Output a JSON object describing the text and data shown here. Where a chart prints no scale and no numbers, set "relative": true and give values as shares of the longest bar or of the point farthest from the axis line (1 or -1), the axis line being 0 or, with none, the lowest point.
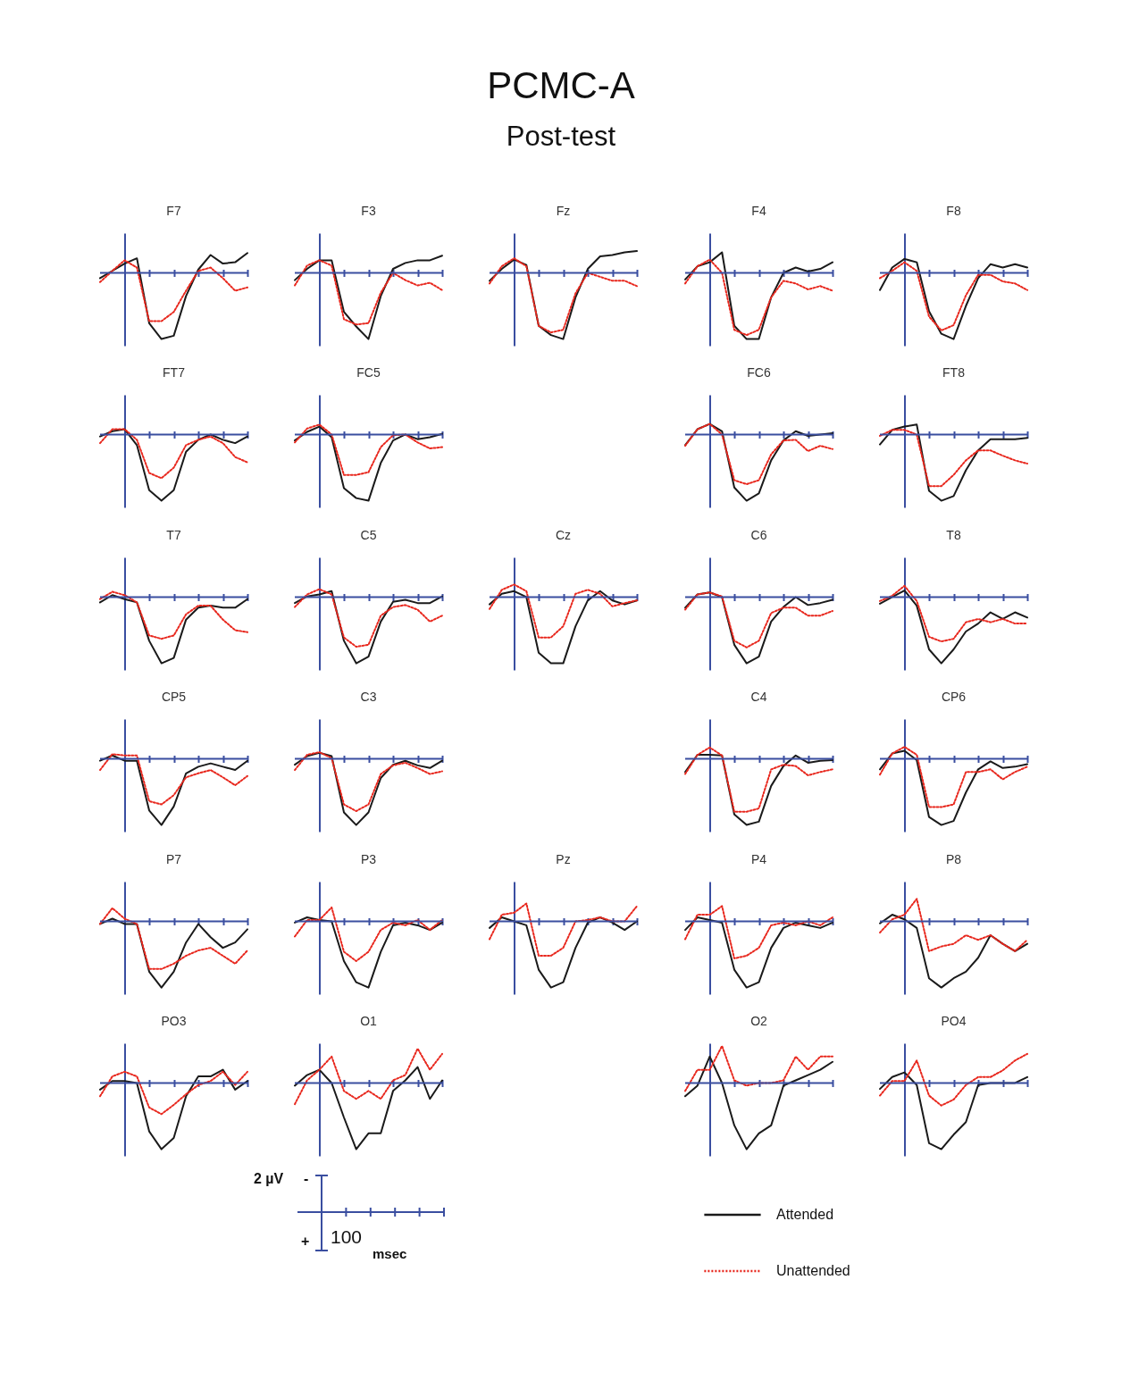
{
  "chart_data": [
    {
      "type": "other",
      "title": "PCMC-A",
      "subtitle": "Post-test"
    },
    {
      "type": "line",
      "title": "F7",
      "relative": true,
      "ref_lines": [
        {
          "axis": "y",
          "value": 0,
          "color": "#3a4ea0"
        }
      ],
      "categories": [
        null,
        null,
        null,
        null,
        null,
        null,
        null,
        null,
        null,
        null,
        null,
        null,
        null
      ],
      "series": [
        {
          "color": "#1a1a1a",
          "line_style": "solid",
          "values": [
            -0.08,
            0.03,
            0.14,
            0.22,
            -0.76,
            -1,
            -0.95,
            -0.35,
            0.05,
            0.27,
            0.14,
            0.16,
            0.3
          ]
        },
        {
          "color": "#e8281e",
          "line_style": "dotted",
          "values": [
            -0.14,
            0.03,
            0.19,
            0.08,
            -0.73,
            -0.73,
            -0.59,
            -0.27,
            0.03,
            0.08,
            -0.08,
            -0.27,
            -0.22
          ]
        }
      ]
    },
    {
      "type": "line",
      "title": "F3",
      "relative": true,
      "ref_lines": [
        {
          "axis": "y",
          "value": 0,
          "color": "#3a4ea0"
        }
      ],
      "categories": [
        null,
        null,
        null,
        null,
        null,
        null,
        null,
        null,
        null,
        null,
        null,
        null,
        null
      ],
      "series": [
        {
          "color": "#1a1a1a",
          "line_style": "solid",
          "values": [
            -0.11,
            0.06,
            0.19,
            0.19,
            -0.59,
            -0.81,
            -1,
            -0.35,
            0.06,
            0.15,
            0.19,
            0.19,
            0.26
          ]
        },
        {
          "color": "#e8281e",
          "line_style": "dotted",
          "values": [
            -0.19,
            0.11,
            0.19,
            0.11,
            -0.7,
            -0.78,
            -0.76,
            -0.3,
            0,
            -0.11,
            -0.19,
            -0.15,
            -0.26
          ]
        }
      ]
    },
    {
      "type": "line",
      "title": "Fz",
      "relative": true,
      "ref_lines": [
        {
          "axis": "y",
          "value": 0,
          "color": "#3a4ea0"
        }
      ],
      "categories": [
        null,
        null,
        null,
        null,
        null,
        null,
        null,
        null,
        null,
        null,
        null,
        null,
        null
      ],
      "series": [
        {
          "color": "#1a1a1a",
          "line_style": "solid",
          "values": [
            -0.12,
            0.06,
            0.2,
            0.12,
            -0.8,
            -0.94,
            -1,
            -0.37,
            0.06,
            0.25,
            0.27,
            0.31,
            0.33
          ]
        },
        {
          "color": "#e8281e",
          "line_style": "dotted",
          "values": [
            -0.16,
            0.1,
            0.22,
            0.1,
            -0.8,
            -0.9,
            -0.86,
            -0.31,
            0,
            -0.06,
            -0.12,
            -0.12,
            -0.2
          ]
        }
      ]
    },
    {
      "type": "line",
      "title": "F4",
      "relative": true,
      "ref_lines": [
        {
          "axis": "y",
          "value": 0,
          "color": "#3a4ea0"
        }
      ],
      "categories": [
        null,
        null,
        null,
        null,
        null,
        null,
        null,
        null,
        null,
        null,
        null,
        null,
        null
      ],
      "series": [
        {
          "color": "#1a1a1a",
          "line_style": "solid",
          "values": [
            -0.1,
            0.1,
            0.16,
            0.31,
            -0.8,
            -1,
            -1,
            -0.37,
            0,
            0.08,
            0.02,
            0.06,
            0.16
          ]
        },
        {
          "color": "#e8281e",
          "line_style": "dotted",
          "values": [
            -0.16,
            0.1,
            0.2,
            0,
            -0.86,
            -0.94,
            -0.86,
            -0.37,
            -0.12,
            -0.16,
            -0.25,
            -0.2,
            -0.27
          ]
        }
      ]
    },
    {
      "type": "line",
      "title": "F8",
      "relative": true,
      "ref_lines": [
        {
          "axis": "y",
          "value": 0,
          "color": "#3a4ea0"
        }
      ],
      "categories": [
        null,
        null,
        null,
        null,
        null,
        null,
        null,
        null,
        null,
        null,
        null,
        null,
        null
      ],
      "series": [
        {
          "color": "#1a1a1a",
          "line_style": "solid",
          "values": [
            -0.26,
            0.08,
            0.21,
            0.16,
            -0.58,
            -0.92,
            -1,
            -0.5,
            -0.08,
            0.13,
            0.08,
            0.13,
            0.08
          ]
        },
        {
          "color": "#e8281e",
          "line_style": "dotted",
          "values": [
            -0.08,
            0.03,
            0.16,
            0.03,
            -0.66,
            -0.87,
            -0.79,
            -0.34,
            -0.03,
            -0.03,
            -0.13,
            -0.16,
            -0.26
          ]
        }
      ]
    },
    {
      "type": "line",
      "title": "FT7",
      "relative": true,
      "ref_lines": [
        {
          "axis": "y",
          "value": 0,
          "color": "#3a4ea0"
        }
      ],
      "categories": [
        null,
        null,
        null,
        null,
        null,
        null,
        null,
        null,
        null,
        null,
        null,
        null,
        null
      ],
      "series": [
        {
          "color": "#1a1a1a",
          "line_style": "solid",
          "values": [
            -0.03,
            0.05,
            0.08,
            -0.16,
            -0.84,
            -1,
            -0.84,
            -0.26,
            -0.08,
            0,
            -0.08,
            -0.13,
            -0.03
          ]
        },
        {
          "color": "#e8281e",
          "line_style": "dotted",
          "values": [
            -0.13,
            0.08,
            0.08,
            -0.08,
            -0.58,
            -0.66,
            -0.5,
            -0.16,
            -0.08,
            -0.03,
            -0.13,
            -0.34,
            -0.42
          ]
        }
      ]
    },
    {
      "type": "line",
      "title": "FC5",
      "relative": true,
      "ref_lines": [
        {
          "axis": "y",
          "value": 0,
          "color": "#3a4ea0"
        }
      ],
      "categories": [
        null,
        null,
        null,
        null,
        null,
        null,
        null,
        null,
        null,
        null,
        null,
        null,
        null
      ],
      "series": [
        {
          "color": "#1a1a1a",
          "line_style": "solid",
          "values": [
            -0.09,
            0.04,
            0.12,
            -0.04,
            -0.81,
            -0.96,
            -1,
            -0.43,
            -0.09,
            0,
            -0.07,
            -0.04,
            0.01
          ]
        },
        {
          "color": "#e8281e",
          "line_style": "dotted",
          "values": [
            -0.12,
            0.09,
            0.15,
            0,
            -0.61,
            -0.61,
            -0.57,
            -0.19,
            -0.01,
            0,
            -0.12,
            -0.21,
            -0.19
          ]
        }
      ]
    },
    {
      "type": "line",
      "title": "FC6",
      "relative": true,
      "ref_lines": [
        {
          "axis": "y",
          "value": 0,
          "color": "#3a4ea0"
        }
      ],
      "categories": [
        null,
        null,
        null,
        null,
        null,
        null,
        null,
        null,
        null,
        null,
        null,
        null,
        null
      ],
      "series": [
        {
          "color": "#1a1a1a",
          "line_style": "solid",
          "values": [
            -0.16,
            0.08,
            0.16,
            0.05,
            -0.8,
            -1,
            -0.89,
            -0.39,
            -0.09,
            0.05,
            -0.02,
            0,
            0.02
          ]
        },
        {
          "color": "#e8281e",
          "line_style": "dotted",
          "values": [
            -0.17,
            0.08,
            0.16,
            0,
            -0.69,
            -0.75,
            -0.69,
            -0.3,
            -0.09,
            -0.08,
            -0.25,
            -0.17,
            -0.22
          ]
        }
      ]
    },
    {
      "type": "line",
      "title": "FT8",
      "relative": true,
      "ref_lines": [
        {
          "axis": "y",
          "value": 0,
          "color": "#3a4ea0"
        }
      ],
      "categories": [
        null,
        null,
        null,
        null,
        null,
        null,
        null,
        null,
        null,
        null,
        null,
        null,
        null
      ],
      "series": [
        {
          "color": "#1a1a1a",
          "line_style": "solid",
          "values": [
            -0.15,
            0.07,
            0.12,
            0.15,
            -0.85,
            -1,
            -0.93,
            -0.54,
            -0.24,
            -0.07,
            -0.07,
            -0.07,
            -0.05
          ]
        },
        {
          "color": "#e8281e",
          "line_style": "dotted",
          "values": [
            -0.02,
            0.07,
            0.07,
            0,
            -0.78,
            -0.78,
            -0.61,
            -0.39,
            -0.24,
            -0.24,
            -0.32,
            -0.39,
            -0.44
          ]
        }
      ]
    },
    {
      "type": "line",
      "title": "T7",
      "relative": true,
      "ref_lines": [
        {
          "axis": "y",
          "value": 0,
          "color": "#3a4ea0"
        }
      ],
      "categories": [
        null,
        null,
        null,
        null,
        null,
        null,
        null,
        null,
        null,
        null,
        null,
        null,
        null
      ],
      "series": [
        {
          "color": "#1a1a1a",
          "line_style": "solid",
          "values": [
            -0.08,
            0.03,
            -0.03,
            -0.08,
            -0.66,
            -1,
            -0.92,
            -0.34,
            -0.16,
            -0.13,
            -0.16,
            -0.16,
            -0.03
          ]
        },
        {
          "color": "#e8281e",
          "line_style": "dotted",
          "values": [
            -0.03,
            0.08,
            0.03,
            -0.08,
            -0.58,
            -0.63,
            -0.58,
            -0.26,
            -0.13,
            -0.13,
            -0.34,
            -0.5,
            -0.53
          ]
        }
      ]
    },
    {
      "type": "line",
      "title": "C5",
      "relative": true,
      "ref_lines": [
        {
          "axis": "y",
          "value": 0,
          "color": "#3a4ea0"
        }
      ],
      "categories": [
        null,
        null,
        null,
        null,
        null,
        null,
        null,
        null,
        null,
        null,
        null,
        null,
        null
      ],
      "series": [
        {
          "color": "#1a1a1a",
          "line_style": "solid",
          "values": [
            -0.09,
            0.01,
            0.04,
            0.09,
            -0.66,
            -1,
            -0.9,
            -0.37,
            -0.07,
            -0.04,
            -0.09,
            -0.09,
            0.01
          ]
        },
        {
          "color": "#e8281e",
          "line_style": "dotted",
          "values": [
            -0.15,
            0.04,
            0.12,
            0.04,
            -0.61,
            -0.75,
            -0.72,
            -0.28,
            -0.15,
            -0.12,
            -0.19,
            -0.37,
            -0.28
          ]
        }
      ]
    },
    {
      "type": "line",
      "title": "Cz",
      "relative": true,
      "ref_lines": [
        {
          "axis": "y",
          "value": 0,
          "color": "#3a4ea0"
        }
      ],
      "categories": [
        null,
        null,
        null,
        null,
        null,
        null,
        null,
        null,
        null,
        null,
        null,
        null,
        null
      ],
      "series": [
        {
          "color": "#1a1a1a",
          "line_style": "solid",
          "values": [
            -0.11,
            0.05,
            0.09,
            0,
            -0.84,
            -1,
            -1,
            -0.44,
            -0.05,
            0.09,
            -0.05,
            -0.11,
            -0.05
          ]
        },
        {
          "color": "#e8281e",
          "line_style": "dotted",
          "values": [
            -0.18,
            0.11,
            0.19,
            0.09,
            -0.61,
            -0.61,
            -0.44,
            0.05,
            0.11,
            0.05,
            -0.14,
            -0.09,
            -0.05
          ]
        }
      ]
    },
    {
      "type": "line",
      "title": "C6",
      "relative": true,
      "ref_lines": [
        {
          "axis": "y",
          "value": 0,
          "color": "#3a4ea0"
        }
      ],
      "categories": [
        null,
        null,
        null,
        null,
        null,
        null,
        null,
        null,
        null,
        null,
        null,
        null,
        null
      ],
      "series": [
        {
          "color": "#1a1a1a",
          "line_style": "solid",
          "values": [
            -0.16,
            0.04,
            0.07,
            0,
            -0.72,
            -1,
            -0.9,
            -0.37,
            -0.15,
            0,
            -0.12,
            -0.09,
            -0.04
          ]
        },
        {
          "color": "#e8281e",
          "line_style": "dotted",
          "values": [
            -0.19,
            0.04,
            0.07,
            0.01,
            -0.66,
            -0.76,
            -0.66,
            -0.24,
            -0.16,
            -0.16,
            -0.28,
            -0.28,
            -0.21
          ]
        }
      ]
    },
    {
      "type": "line",
      "title": "T8",
      "relative": true,
      "ref_lines": [
        {
          "axis": "y",
          "value": 0,
          "color": "#3a4ea0"
        }
      ],
      "categories": [
        null,
        null,
        null,
        null,
        null,
        null,
        null,
        null,
        null,
        null,
        null,
        null,
        null
      ],
      "series": [
        {
          "color": "#1a1a1a",
          "line_style": "solid",
          "values": [
            -0.1,
            0,
            0.1,
            -0.13,
            -0.79,
            -1,
            -0.79,
            -0.52,
            -0.4,
            -0.23,
            -0.33,
            -0.23,
            -0.31
          ]
        },
        {
          "color": "#e8281e",
          "line_style": "dotted",
          "values": [
            -0.06,
            0.02,
            0.17,
            -0.06,
            -0.6,
            -0.67,
            -0.63,
            -0.38,
            -0.33,
            -0.38,
            -0.33,
            -0.4,
            -0.4
          ]
        }
      ]
    },
    {
      "type": "line",
      "title": "CP5",
      "relative": true,
      "ref_lines": [
        {
          "axis": "y",
          "value": 0,
          "color": "#3a4ea0"
        }
      ],
      "categories": [
        null,
        null,
        null,
        null,
        null,
        null,
        null,
        null,
        null,
        null,
        null,
        null,
        null
      ],
      "series": [
        {
          "color": "#1a1a1a",
          "line_style": "solid",
          "values": [
            -0.03,
            0.05,
            -0.03,
            -0.03,
            -0.78,
            -1,
            -0.72,
            -0.22,
            -0.12,
            -0.07,
            -0.12,
            -0.17,
            -0.03
          ]
        },
        {
          "color": "#e8281e",
          "line_style": "dotted",
          "values": [
            -0.17,
            0.07,
            0.05,
            0.05,
            -0.64,
            -0.69,
            -0.55,
            -0.28,
            -0.22,
            -0.17,
            -0.28,
            -0.4,
            -0.26
          ]
        }
      ]
    },
    {
      "type": "line",
      "title": "C3",
      "relative": true,
      "ref_lines": [
        {
          "axis": "y",
          "value": 0,
          "color": "#3a4ea0"
        }
      ],
      "categories": [
        null,
        null,
        null,
        null,
        null,
        null,
        null,
        null,
        null,
        null,
        null,
        null,
        null
      ],
      "series": [
        {
          "color": "#1a1a1a",
          "line_style": "solid",
          "values": [
            -0.09,
            0.04,
            0.09,
            0.04,
            -0.81,
            -1,
            -0.81,
            -0.29,
            -0.09,
            -0.03,
            -0.1,
            -0.14,
            -0.03
          ]
        },
        {
          "color": "#e8281e",
          "line_style": "dotted",
          "values": [
            -0.17,
            0.06,
            0.1,
            0.01,
            -0.69,
            -0.79,
            -0.69,
            -0.23,
            -0.1,
            -0.06,
            -0.14,
            -0.23,
            -0.19
          ]
        }
      ]
    },
    {
      "type": "line",
      "title": "C4",
      "relative": true,
      "ref_lines": [
        {
          "axis": "y",
          "value": 0,
          "color": "#3a4ea0"
        }
      ],
      "categories": [
        null,
        null,
        null,
        null,
        null,
        null,
        null,
        null,
        null,
        null,
        null,
        null,
        null
      ],
      "series": [
        {
          "color": "#1a1a1a",
          "line_style": "solid",
          "values": [
            -0.2,
            0.06,
            0.06,
            0.05,
            -0.84,
            -1,
            -0.95,
            -0.41,
            -0.11,
            0.05,
            -0.06,
            -0.03,
            -0.02
          ]
        },
        {
          "color": "#e8281e",
          "line_style": "dotted",
          "values": [
            -0.23,
            0.06,
            0.17,
            0.05,
            -0.8,
            -0.8,
            -0.75,
            -0.16,
            -0.09,
            -0.11,
            -0.25,
            -0.2,
            -0.16
          ]
        }
      ]
    },
    {
      "type": "line",
      "title": "CP6",
      "relative": true,
      "ref_lines": [
        {
          "axis": "y",
          "value": 0,
          "color": "#3a4ea0"
        }
      ],
      "categories": [
        null,
        null,
        null,
        null,
        null,
        null,
        null,
        null,
        null,
        null,
        null,
        null,
        null
      ],
      "series": [
        {
          "color": "#1a1a1a",
          "line_style": "solid",
          "values": [
            -0.16,
            0.08,
            0.12,
            -0.02,
            -0.88,
            -1,
            -0.94,
            -0.51,
            -0.16,
            -0.04,
            -0.14,
            -0.12,
            -0.08
          ]
        },
        {
          "color": "#e8281e",
          "line_style": "dotted",
          "values": [
            -0.24,
            0.08,
            0.18,
            0.06,
            -0.73,
            -0.73,
            -0.69,
            -0.2,
            -0.2,
            -0.16,
            -0.31,
            -0.2,
            -0.12
          ]
        }
      ]
    },
    {
      "type": "line",
      "title": "P7",
      "relative": true,
      "ref_lines": [
        {
          "axis": "y",
          "value": 0,
          "color": "#3a4ea0"
        }
      ],
      "categories": [
        null,
        null,
        null,
        null,
        null,
        null,
        null,
        null,
        null,
        null,
        null,
        null,
        null
      ],
      "series": [
        {
          "color": "#1a1a1a",
          "line_style": "solid",
          "values": [
            -0.04,
            0.04,
            -0.04,
            -0.04,
            -0.76,
            -1,
            -0.76,
            -0.32,
            -0.04,
            -0.24,
            -0.4,
            -0.32,
            -0.12
          ]
        },
        {
          "color": "#e8281e",
          "line_style": "dotted",
          "values": [
            -0.04,
            0.2,
            0.04,
            -0.04,
            -0.72,
            -0.72,
            -0.64,
            -0.52,
            -0.44,
            -0.4,
            -0.52,
            -0.64,
            -0.44
          ]
        }
      ]
    },
    {
      "type": "line",
      "title": "P3",
      "relative": true,
      "ref_lines": [
        {
          "axis": "y",
          "value": 0,
          "color": "#3a4ea0"
        }
      ],
      "categories": [
        null,
        null,
        null,
        null,
        null,
        null,
        null,
        null,
        null,
        null,
        null,
        null,
        null
      ],
      "series": [
        {
          "color": "#1a1a1a",
          "line_style": "solid",
          "values": [
            -0.02,
            0.06,
            0.02,
            0,
            -0.6,
            -0.92,
            -1,
            -0.46,
            -0.06,
            -0.02,
            -0.06,
            -0.13,
            -0.02
          ]
        },
        {
          "color": "#e8281e",
          "line_style": "dotted",
          "values": [
            -0.23,
            0.02,
            0.02,
            0.21,
            -0.46,
            -0.6,
            -0.46,
            -0.13,
            -0.02,
            -0.06,
            0.02,
            -0.13,
            0.02
          ]
        }
      ]
    },
    {
      "type": "line",
      "title": "Pz",
      "relative": true,
      "ref_lines": [
        {
          "axis": "y",
          "value": 0,
          "color": "#3a4ea0"
        }
      ],
      "categories": [
        null,
        null,
        null,
        null,
        null,
        null,
        null,
        null,
        null,
        null,
        null,
        null,
        null
      ],
      "series": [
        {
          "color": "#1a1a1a",
          "line_style": "solid",
          "values": [
            -0.1,
            0.06,
            0,
            -0.06,
            -0.73,
            -1,
            -0.92,
            -0.4,
            -0.02,
            0.06,
            -0.02,
            -0.13,
            0
          ]
        },
        {
          "color": "#e8281e",
          "line_style": "dotted",
          "values": [
            -0.27,
            0.1,
            0.13,
            0.27,
            -0.52,
            -0.52,
            -0.4,
            0,
            0.02,
            0.06,
            0,
            0,
            0.23
          ]
        }
      ]
    },
    {
      "type": "line",
      "title": "P4",
      "relative": true,
      "ref_lines": [
        {
          "axis": "y",
          "value": 0,
          "color": "#3a4ea0"
        }
      ],
      "categories": [
        null,
        null,
        null,
        null,
        null,
        null,
        null,
        null,
        null,
        null,
        null,
        null,
        null
      ],
      "series": [
        {
          "color": "#1a1a1a",
          "line_style": "solid",
          "values": [
            -0.13,
            0.06,
            0.02,
            -0.02,
            -0.73,
            -1,
            -0.92,
            -0.4,
            -0.1,
            -0.02,
            -0.06,
            -0.1,
            -0.02
          ]
        },
        {
          "color": "#e8281e",
          "line_style": "dotted",
          "values": [
            -0.27,
            0.1,
            0.1,
            0.23,
            -0.56,
            -0.52,
            -0.4,
            -0.06,
            -0.02,
            -0.06,
            0,
            -0.06,
            0.06
          ]
        }
      ]
    },
    {
      "type": "line",
      "title": "P8",
      "relative": true,
      "ref_lines": [
        {
          "axis": "y",
          "value": 0,
          "color": "#3a4ea0"
        }
      ],
      "categories": [
        null,
        null,
        null,
        null,
        null,
        null,
        null,
        null,
        null,
        null,
        null,
        null,
        null
      ],
      "series": [
        {
          "color": "#1a1a1a",
          "line_style": "solid",
          "values": [
            -0.03,
            0.1,
            0.03,
            -0.1,
            -0.86,
            -1,
            -0.86,
            -0.76,
            -0.55,
            -0.21,
            -0.34,
            -0.45,
            -0.34
          ]
        },
        {
          "color": "#e8281e",
          "line_style": "dotted",
          "values": [
            -0.17,
            0.03,
            0.1,
            0.34,
            -0.45,
            -0.38,
            -0.34,
            -0.21,
            -0.28,
            -0.21,
            -0.34,
            -0.45,
            -0.28
          ]
        }
      ]
    },
    {
      "type": "line",
      "title": "PO3",
      "relative": true,
      "ref_lines": [
        {
          "axis": "y",
          "value": 0,
          "color": "#3a4ea0"
        }
      ],
      "categories": [
        null,
        null,
        null,
        null,
        null,
        null,
        null,
        null,
        null,
        null,
        null,
        null,
        null
      ],
      "series": [
        {
          "color": "#1a1a1a",
          "line_style": "solid",
          "values": [
            -0.1,
            0.03,
            0.03,
            0,
            -0.73,
            -1,
            -0.83,
            -0.2,
            0.1,
            0.1,
            0.2,
            -0.1,
            0.03
          ]
        },
        {
          "color": "#e8281e",
          "line_style": "dotted",
          "values": [
            -0.2,
            0.1,
            0.17,
            0.1,
            -0.37,
            -0.47,
            -0.33,
            -0.17,
            -0.03,
            0.03,
            0.17,
            -0.03,
            0.17
          ]
        }
      ]
    },
    {
      "type": "line",
      "title": "O1",
      "relative": true,
      "ref_lines": [
        {
          "axis": "y",
          "value": 0,
          "color": "#3a4ea0"
        }
      ],
      "categories": [
        null,
        null,
        null,
        null,
        null,
        null,
        null,
        null,
        null,
        null,
        null,
        null,
        null
      ],
      "series": [
        {
          "color": "#1a1a1a",
          "line_style": "solid",
          "values": [
            -0.04,
            0.12,
            0.2,
            0,
            -0.52,
            -1,
            -0.76,
            -0.76,
            -0.12,
            0.04,
            0.24,
            -0.24,
            0.04
          ]
        },
        {
          "color": "#e8281e",
          "line_style": "dotted",
          "values": [
            -0.32,
            0.04,
            0.2,
            0.4,
            -0.12,
            -0.24,
            -0.12,
            -0.24,
            0.04,
            0.12,
            0.52,
            0.2,
            0.44
          ]
        }
      ]
    },
    {
      "type": "line",
      "title": "O2",
      "relative": true,
      "ref_lines": [
        {
          "axis": "y",
          "value": 0,
          "color": "#3a4ea0"
        }
      ],
      "legend": "bottom",
      "categories": [
        null,
        null,
        null,
        null,
        null,
        null,
        null,
        null,
        null,
        null,
        null,
        null,
        null
      ],
      "series": [
        {
          "name": "Attended",
          "color": "#1a1a1a",
          "line_style": "solid",
          "values": [
            -0.2,
            -0.04,
            0.4,
            0,
            -0.64,
            -1,
            -0.76,
            -0.64,
            -0.04,
            0.04,
            0.12,
            0.2,
            0.32
          ]
        },
        {
          "name": "Unattended",
          "color": "#e8281e",
          "line_style": "dotted",
          "values": [
            -0.12,
            0.2,
            0.2,
            0.56,
            0.04,
            -0.04,
            0,
            0,
            0.04,
            0.4,
            0.2,
            0.4,
            0.4
          ]
        }
      ]
    },
    {
      "type": "line",
      "title": "PO4",
      "relative": true,
      "ref_lines": [
        {
          "axis": "y",
          "value": 0,
          "color": "#3a4ea0"
        }
      ],
      "categories": [
        null,
        null,
        null,
        null,
        null,
        null,
        null,
        null,
        null,
        null,
        null,
        null,
        null
      ],
      "series": [
        {
          "color": "#1a1a1a",
          "line_style": "solid",
          "values": [
            -0.09,
            0.09,
            0.16,
            -0.03,
            -0.91,
            -1,
            -0.78,
            -0.59,
            -0.03,
            0,
            0,
            0,
            0.09
          ]
        },
        {
          "color": "#e8281e",
          "line_style": "dotted",
          "values": [
            -0.19,
            0.03,
            0.03,
            0.34,
            -0.19,
            -0.34,
            -0.25,
            -0.03,
            0.09,
            0.09,
            0.19,
            0.34,
            0.44
          ]
        }
      ]
    },
    {
      "type": "other",
      "annotations": [
        "2 µV",
        "-",
        "+",
        "100",
        "msec"
      ]
    }
  ]
}
